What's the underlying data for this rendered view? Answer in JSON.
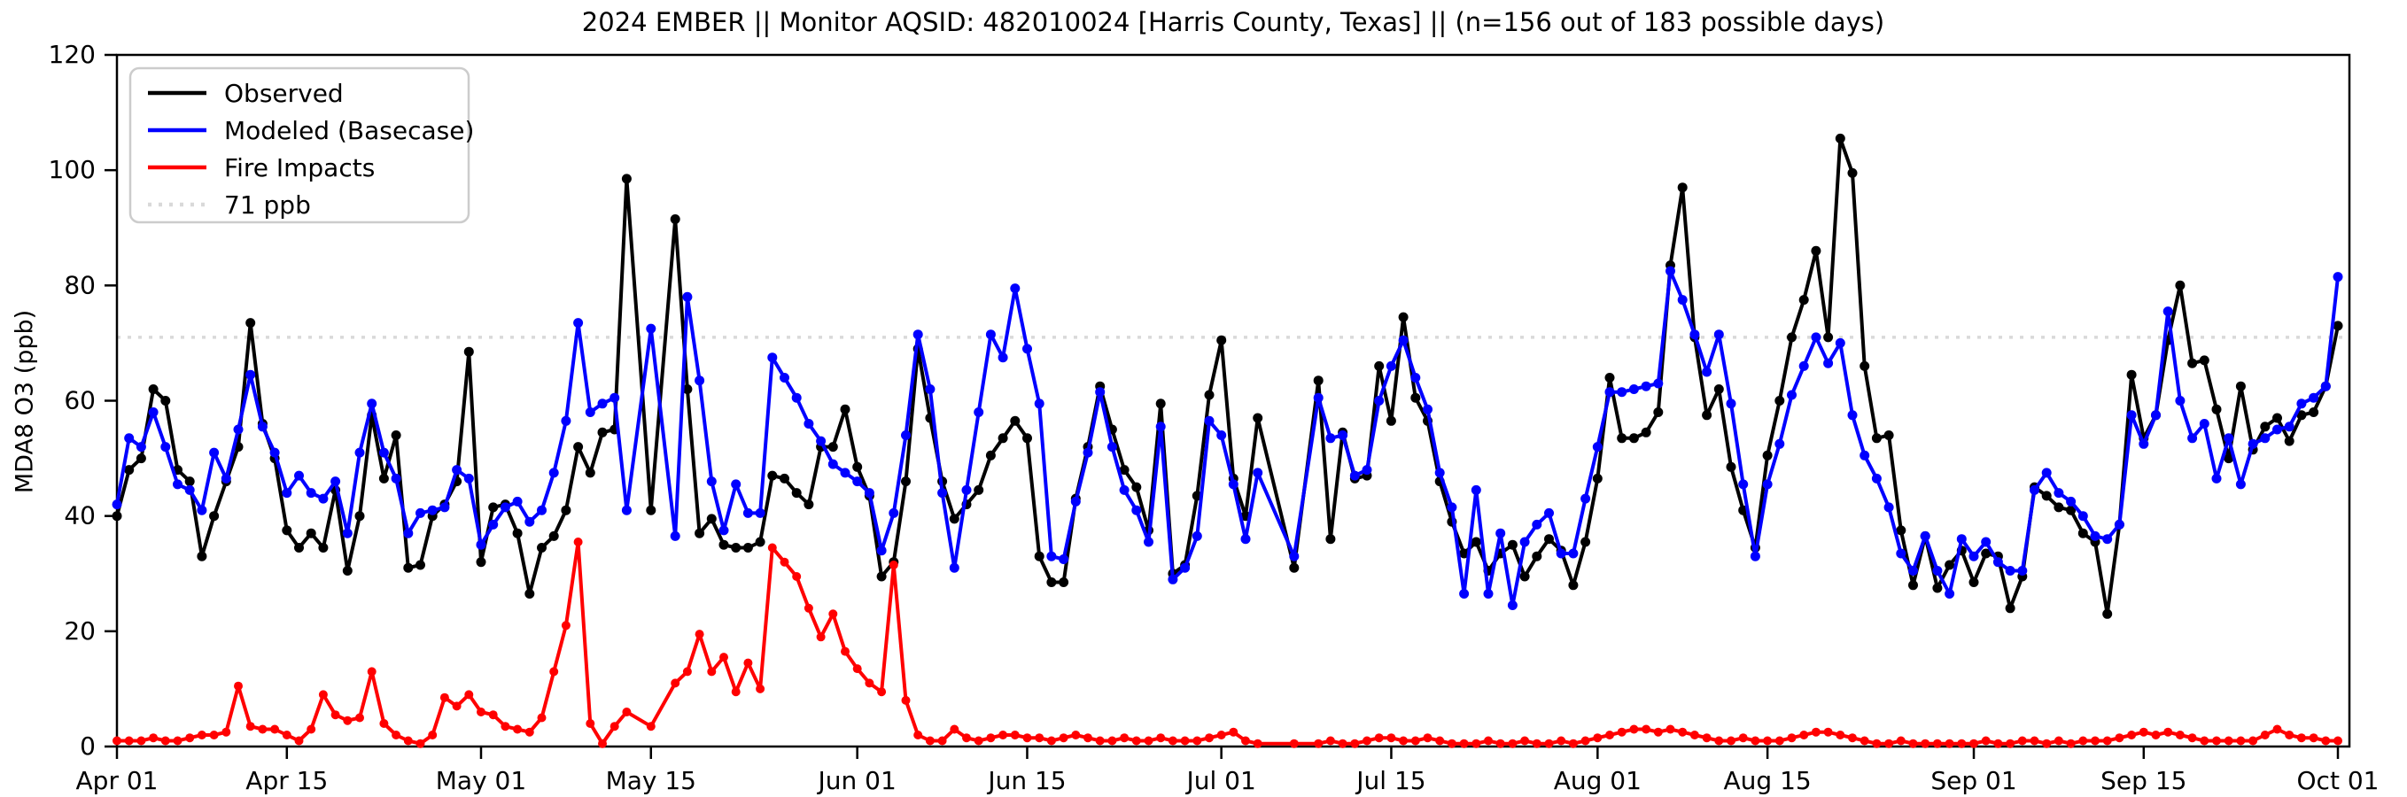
{
  "figure": {
    "title": "2024 EMBER || Monitor AQSID: 482010024 [Harris County, Texas] || (n=156 out of 183 possible days)",
    "ylabel": "MDA8 O3 (ppb)"
  },
  "chart_data": {
    "type": "line",
    "title": "2024 EMBER || Monitor AQSID: 482010024 [Harris County, Texas] || (n=156 out of 183 possible days)",
    "xlabel": "",
    "ylabel": "MDA8 O3 (ppb)",
    "ylim": [
      0,
      120
    ],
    "yticks": [
      0,
      20,
      40,
      60,
      80,
      100,
      120
    ],
    "grid": false,
    "legend_position": "upper left",
    "x_start": "Apr 01",
    "x_end": "Oct 01",
    "n_days": 184,
    "xticks": [
      {
        "day": 0,
        "label": "Apr 01"
      },
      {
        "day": 14,
        "label": "Apr 15"
      },
      {
        "day": 30,
        "label": "May 01"
      },
      {
        "day": 44,
        "label": "May 15"
      },
      {
        "day": 61,
        "label": "Jun 01"
      },
      {
        "day": 75,
        "label": "Jun 15"
      },
      {
        "day": 91,
        "label": "Jul 01"
      },
      {
        "day": 105,
        "label": "Jul 15"
      },
      {
        "day": 122,
        "label": "Aug 01"
      },
      {
        "day": 136,
        "label": "Aug 15"
      },
      {
        "day": 153,
        "label": "Sep 01"
      },
      {
        "day": 167,
        "label": "Sep 15"
      },
      {
        "day": 183,
        "label": "Oct 01"
      }
    ],
    "threshold": {
      "value": 71,
      "label": "71 ppb",
      "color": "#d9d9d9"
    },
    "series": [
      {
        "name": "Observed",
        "color": "#000000",
        "values": [
          40,
          48,
          50,
          62,
          60,
          48,
          46,
          33,
          40,
          46,
          52,
          73.5,
          56,
          50,
          37.5,
          34.5,
          37,
          34.5,
          44.5,
          30.5,
          40,
          57.5,
          46.5,
          54,
          31,
          31.5,
          40,
          42,
          46,
          68.5,
          32,
          41.5,
          42,
          37,
          26.5,
          34.5,
          36.5,
          41,
          52,
          47.5,
          54.5,
          55,
          98.5,
          null,
          41,
          null,
          91.5,
          62,
          37,
          39.5,
          35,
          34.5,
          34.5,
          35.5,
          47,
          46.5,
          44,
          42,
          52,
          52,
          58.5,
          48.5,
          43.5,
          29.5,
          32,
          46,
          69,
          57,
          46,
          39.5,
          42,
          44.5,
          50.5,
          53.5,
          56.5,
          53.5,
          33,
          28.5,
          28.5,
          43,
          52,
          62.5,
          55,
          48,
          45,
          37.5,
          59.5,
          30,
          31.5,
          43.5,
          61,
          70.5,
          46.5,
          40,
          57,
          null,
          null,
          31,
          null,
          63.5,
          36,
          54.5,
          46.5,
          47,
          66,
          56.5,
          74.5,
          60.5,
          56.5,
          46,
          39,
          33.5,
          35.5,
          30.5,
          33.5,
          35,
          29.5,
          33,
          36,
          34,
          28,
          35.5,
          46.5,
          64,
          53.5,
          53.5,
          54.5,
          58,
          83.5,
          97,
          71,
          57.5,
          62,
          48.5,
          41,
          34.5,
          50.5,
          60,
          71,
          77.5,
          86,
          71,
          105.5,
          99.5,
          66,
          53.5,
          54,
          37.5,
          28,
          36.5,
          27.5,
          31.5,
          34,
          28.5,
          33.5,
          33,
          24,
          29.5,
          45,
          43.5,
          41.5,
          41,
          37,
          35.5,
          23,
          38.5,
          64.5,
          53.5,
          57.5,
          70.5,
          80,
          66.5,
          67,
          58.5,
          50,
          62.5,
          51.5,
          55.5,
          57,
          53,
          57.5,
          58,
          62.5,
          73
        ]
      },
      {
        "name": "Modeled (Basecase)",
        "color": "#0000ff",
        "values": [
          42,
          53.5,
          52,
          58,
          52,
          45.5,
          44.5,
          41,
          51,
          46.5,
          55,
          64.5,
          55.5,
          51,
          44,
          47,
          44,
          43,
          46,
          37,
          51,
          59.5,
          51,
          46.5,
          37,
          40.5,
          41,
          41.5,
          48,
          46.5,
          35,
          38.5,
          41.5,
          42.5,
          39,
          41,
          47.5,
          56.5,
          73.5,
          58,
          59.5,
          60.5,
          41,
          null,
          72.5,
          null,
          36.5,
          78,
          63.5,
          46,
          37.5,
          45.5,
          40.5,
          40.5,
          67.5,
          64,
          60.5,
          56,
          53,
          49,
          47.5,
          46,
          44,
          34,
          40.5,
          54,
          71.5,
          62,
          44,
          31,
          44.5,
          58,
          71.5,
          67.5,
          79.5,
          69,
          59.5,
          33,
          32.5,
          42.5,
          51,
          61.5,
          52,
          44.5,
          41,
          35.5,
          55.5,
          29,
          31,
          36.5,
          56.5,
          54,
          45.5,
          36,
          47.5,
          null,
          null,
          33,
          null,
          60.5,
          53.5,
          54,
          47,
          48,
          60,
          66,
          70.5,
          64,
          58.5,
          47.5,
          41.5,
          26.5,
          44.5,
          26.5,
          37,
          24.5,
          35.5,
          38.5,
          40.5,
          33.5,
          33.5,
          43,
          52,
          61.5,
          61.5,
          62,
          62.5,
          63,
          82.5,
          77.5,
          71.5,
          65,
          71.5,
          59.5,
          45.5,
          33,
          45.5,
          52.5,
          61,
          66,
          71,
          66.5,
          70,
          57.5,
          50.5,
          46.5,
          41.5,
          33.5,
          30.5,
          36.5,
          30.5,
          26.5,
          36,
          33,
          35.5,
          32,
          30.5,
          30.5,
          44.5,
          47.5,
          44,
          42.5,
          40,
          36.5,
          36,
          38.5,
          57.5,
          52.5,
          57.5,
          75.5,
          60,
          53.5,
          56,
          46.5,
          53.5,
          45.5,
          52.5,
          53.5,
          55,
          55.5,
          59.5,
          60.5,
          62.5,
          81.5
        ]
      },
      {
        "name": "Fire Impacts",
        "color": "#ff0000",
        "values": [
          1,
          1,
          1,
          1.5,
          1,
          1,
          1.5,
          2,
          2,
          2.5,
          10.5,
          3.5,
          3,
          3,
          2,
          1,
          3,
          9,
          5.5,
          4.5,
          5,
          13,
          4,
          2,
          1,
          0.5,
          2,
          8.5,
          7,
          9,
          6,
          5.5,
          3.5,
          3,
          2.5,
          5,
          13,
          21,
          35.5,
          4,
          0.5,
          3.5,
          6,
          null,
          3.5,
          null,
          11,
          13,
          19.5,
          13,
          15.5,
          9.5,
          14.5,
          10,
          34.5,
          32,
          29.5,
          24,
          19,
          23,
          16.5,
          13.5,
          11,
          9.5,
          31.5,
          8,
          2,
          1,
          1,
          3,
          1.5,
          1,
          1.5,
          2,
          2,
          1.5,
          1.5,
          1,
          1.5,
          2,
          1.5,
          1,
          1,
          1.5,
          1,
          1,
          1.5,
          1,
          1,
          1,
          1.5,
          2,
          2.5,
          1,
          0.5,
          null,
          null,
          0.5,
          null,
          0.5,
          1,
          0.5,
          0.5,
          1,
          1.5,
          1.5,
          1,
          1,
          1.5,
          1,
          0.5,
          0.5,
          0.5,
          1,
          0.5,
          0.5,
          1,
          0.5,
          0.5,
          1,
          0.5,
          1,
          1.5,
          2,
          2.5,
          3,
          3,
          2.5,
          3,
          2.5,
          2,
          1.5,
          1,
          1,
          1.5,
          1,
          1,
          1,
          1.5,
          2,
          2.5,
          2.5,
          2,
          1.5,
          1,
          0.5,
          0.5,
          1,
          0.5,
          0.5,
          0.5,
          0.5,
          0.5,
          0.5,
          1,
          0.5,
          0.5,
          1,
          1,
          0.5,
          1,
          0.5,
          1,
          1,
          1,
          1.5,
          2,
          2.5,
          2,
          2.5,
          2,
          1.5,
          1,
          1,
          1,
          1,
          1,
          2,
          3,
          2,
          1.5,
          1.5,
          1,
          1
        ]
      }
    ]
  }
}
